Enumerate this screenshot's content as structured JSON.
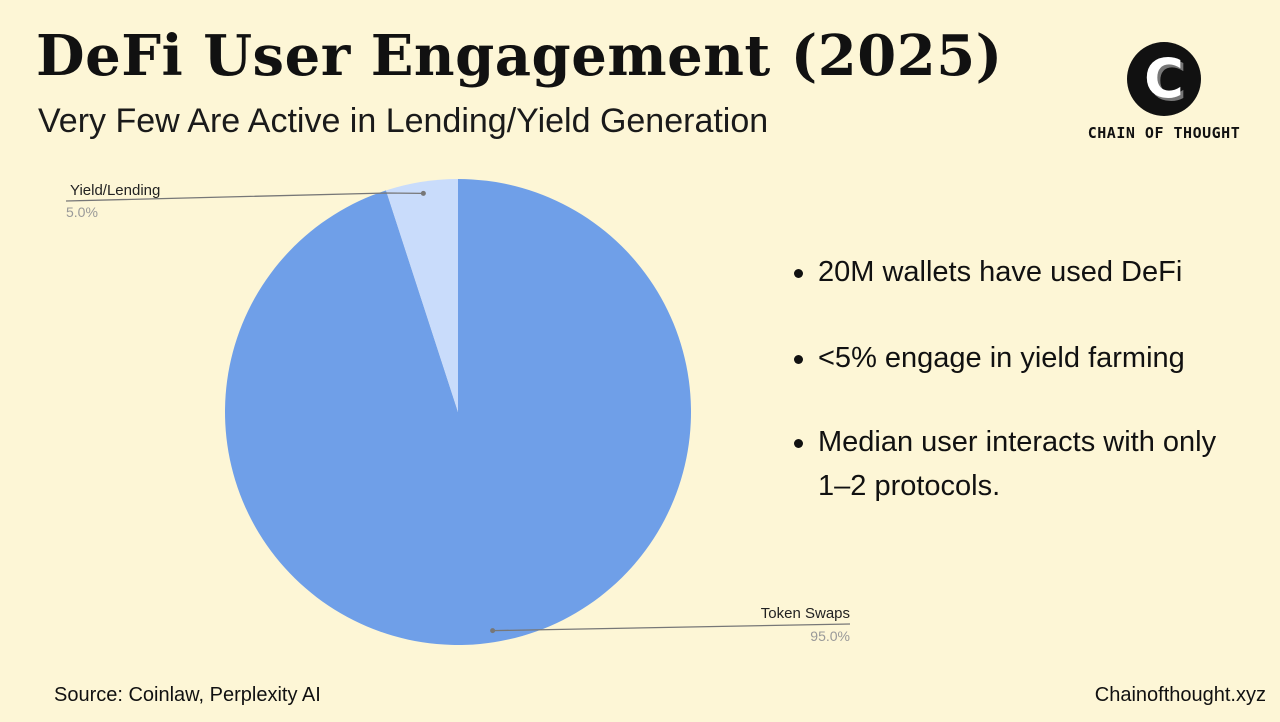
{
  "header": {
    "title": "DeFi User Engagement (2025)",
    "subtitle": "Very Few Are Active in Lending/Yield Generation"
  },
  "logo": {
    "letter": "C",
    "name": "CHAIN OF THOUGHT"
  },
  "chart_data": {
    "type": "pie",
    "title": "",
    "categories": [
      "Token Swaps",
      "Yield/Lending"
    ],
    "values": [
      95.0,
      5.0
    ],
    "value_labels": [
      "95.0%",
      "5.0%"
    ],
    "colors": [
      "#6f9fe8",
      "#c9dcfb"
    ],
    "start": "12 o'clock, clockwise",
    "legend": "none (callout labels)"
  },
  "bullets": [
    "20M wallets have used DeFi",
    "<5% engage in yield farming",
    "Median user interacts with only 1–2 protocols."
  ],
  "footer": {
    "source": "Source: Coinlaw, Perplexity AI",
    "site": "Chainofthought.xyz"
  }
}
